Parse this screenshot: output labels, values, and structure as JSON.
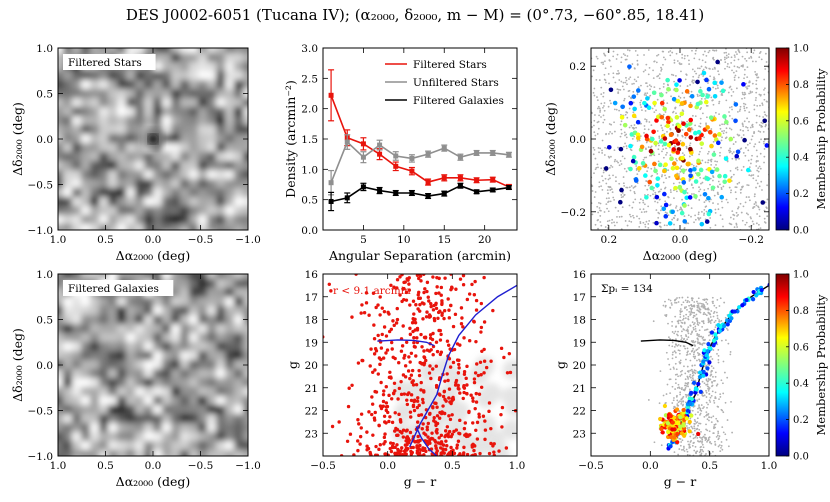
{
  "title": "DES J0002-6051 (Tucana IV); (α₂₀₀₀, δ₂₀₀₀, m − M) = (0°.73, −60°.85, 18.41)",
  "colors": {
    "filtered_stars": "#e8140c",
    "unfiltered_stars": "#8f8f8f",
    "filtered_galaxies": "#000000",
    "isochrone": "#1f1fd0"
  },
  "chart_data": [
    {
      "id": "density_map_stars",
      "type": "heatmap",
      "annotation": "Filtered Stars",
      "xlabel": "Δα₂₀₀₀ (deg)",
      "ylabel": "Δδ₂₀₀₀ (deg)",
      "xlim": [
        1.0,
        -1.0
      ],
      "ylim": [
        -1.0,
        1.0
      ],
      "xticks": [
        "1.0",
        "0.5",
        "0.0",
        "−0.5",
        "−1.0"
      ],
      "yticks": [
        "−1.0",
        "−0.5",
        "0.0",
        "0.5",
        "1.0"
      ],
      "colormap": "gray_r",
      "overdensity_center": [
        0.0,
        0.0
      ]
    },
    {
      "id": "radial_profile",
      "type": "line",
      "xlabel": "Angular Separation (arcmin)",
      "ylabel": "Density (arcmin⁻²)",
      "xlim": [
        0,
        24
      ],
      "ylim": [
        0.0,
        3.0
      ],
      "xticks": [
        "5",
        "10",
        "15",
        "20"
      ],
      "yticks": [
        "0.0",
        "0.5",
        "1.0",
        "1.5",
        "2.0",
        "2.5",
        "3.0"
      ],
      "legend_position": "top-right",
      "x": [
        1,
        3,
        5,
        7,
        9,
        11,
        13,
        15,
        17,
        19,
        21,
        23
      ],
      "series": [
        {
          "name": "Filtered Stars",
          "color": "#e8140c",
          "values": [
            2.22,
            1.52,
            1.42,
            1.25,
            1.05,
            0.97,
            0.79,
            0.86,
            0.86,
            0.82,
            0.83,
            0.71
          ],
          "errors": [
            0.42,
            0.13,
            0.1,
            0.09,
            0.07,
            0.06,
            0.05,
            0.05,
            0.05,
            0.04,
            0.04,
            0.04
          ]
        },
        {
          "name": "Unfiltered Stars",
          "color": "#8f8f8f",
          "values": [
            0.78,
            1.45,
            1.2,
            1.4,
            1.22,
            1.18,
            1.25,
            1.35,
            1.2,
            1.27,
            1.27,
            1.24
          ],
          "errors": [
            0.2,
            0.12,
            0.09,
            0.08,
            0.07,
            0.06,
            0.05,
            0.05,
            0.05,
            0.04,
            0.04,
            0.04
          ]
        },
        {
          "name": "Filtered Galaxies",
          "color": "#000000",
          "values": [
            0.47,
            0.53,
            0.71,
            0.65,
            0.61,
            0.61,
            0.56,
            0.6,
            0.73,
            0.63,
            0.66,
            0.7
          ],
          "errors": [
            0.15,
            0.08,
            0.06,
            0.05,
            0.04,
            0.04,
            0.04,
            0.04,
            0.04,
            0.03,
            0.03,
            0.03
          ]
        }
      ]
    },
    {
      "id": "spatial_members",
      "type": "scatter",
      "xlabel": "Δα₂₀₀₀ (deg)",
      "ylabel": "Δδ₂₀₀₀ (deg)",
      "xlim": [
        0.25,
        -0.25
      ],
      "ylim": [
        -0.25,
        0.25
      ],
      "xticks": [
        "0.2",
        "0.0",
        "−0.2"
      ],
      "yticks": [
        "−0.2",
        "0.0",
        "0.2"
      ],
      "colorbar_label": "Membership Probability",
      "colorbar_ticks": [
        "0.0",
        "0.2",
        "0.4",
        "0.6",
        "0.8",
        "1.0"
      ],
      "colormap": "jet"
    },
    {
      "id": "density_map_galaxies",
      "type": "heatmap",
      "annotation": "Filtered Galaxies",
      "xlabel": "Δα₂₀₀₀ (deg)",
      "ylabel": "Δδ₂₀₀₀ (deg)",
      "xlim": [
        1.0,
        -1.0
      ],
      "ylim": [
        -1.0,
        1.0
      ],
      "xticks": [
        "1.0",
        "0.5",
        "0.0",
        "−0.5",
        "−1.0"
      ],
      "yticks": [
        "−1.0",
        "−0.5",
        "0.0",
        "0.5",
        "1.0"
      ],
      "colormap": "gray_r"
    },
    {
      "id": "cmd_radius",
      "type": "scatter",
      "annotation": "r < 9.1 arcmin",
      "xlabel": "g − r",
      "ylabel": "g",
      "xlim": [
        -0.5,
        1.0
      ],
      "ylim": [
        24,
        16
      ],
      "xticks": [
        "−0.5",
        "0.0",
        "0.5",
        "1.0"
      ],
      "yticks": [
        "16",
        "17",
        "18",
        "19",
        "20",
        "21",
        "22",
        "23"
      ],
      "isochrone": {
        "rgb": [
          [
            0.17,
            23.6
          ],
          [
            0.25,
            22.6
          ],
          [
            0.32,
            21.9
          ],
          [
            0.38,
            21.3
          ],
          [
            0.42,
            20.5
          ],
          [
            0.47,
            19.6
          ],
          [
            0.55,
            18.7
          ],
          [
            0.68,
            17.8
          ],
          [
            0.85,
            17.0
          ],
          [
            1.0,
            16.5
          ]
        ],
        "hb": [
          [
            -0.08,
            18.95
          ],
          [
            0.08,
            18.9
          ],
          [
            0.2,
            18.92
          ],
          [
            0.3,
            19.0
          ],
          [
            0.36,
            19.15
          ]
        ],
        "ms": [
          [
            0.22,
            22.7
          ],
          [
            0.26,
            23.2
          ],
          [
            0.32,
            23.7
          ],
          [
            0.38,
            24.0
          ]
        ]
      }
    },
    {
      "id": "cmd_members",
      "type": "scatter",
      "annotation": "Σpᵢ = 134",
      "xlabel": "g − r",
      "ylabel": "g",
      "xlim": [
        -0.5,
        1.0
      ],
      "ylim": [
        24,
        16
      ],
      "xticks": [
        "−0.5",
        "0.0",
        "0.5",
        "1.0"
      ],
      "yticks": [
        "16",
        "17",
        "18",
        "19",
        "20",
        "21",
        "22",
        "23"
      ],
      "colorbar_label": "Membership Probability",
      "colorbar_ticks": [
        "0.0",
        "0.2",
        "0.4",
        "0.6",
        "0.8",
        "1.0"
      ],
      "colormap": "jet"
    }
  ]
}
